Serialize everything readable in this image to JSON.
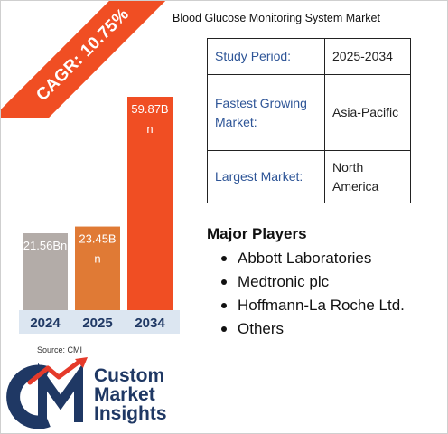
{
  "title": "Blood Glucose Monitoring System Market",
  "cagr_label": "CAGR: 10.75%",
  "source": "Source: CMI",
  "chart_data": {
    "type": "bar",
    "categories": [
      "2024",
      "2025",
      "2034"
    ],
    "values": [
      21.56,
      23.45,
      59.87
    ],
    "data_labels": [
      "21.56Bn",
      "23.45Bn",
      "59.87Bn"
    ],
    "colors": [
      "#b3aca8",
      "#e07a35",
      "#f04e23"
    ],
    "year_band_color": "#dce6f1"
  },
  "info_table": [
    {
      "key": "Study Period:",
      "value": "2025-2034"
    },
    {
      "key": "Fastest Growing Market:",
      "value": "Asia-Pacific"
    },
    {
      "key": "Largest Market:",
      "value": "North America"
    }
  ],
  "players": {
    "heading": "Major Players",
    "items": [
      "Abbott Laboratories",
      "Medtronic plc",
      "Hoffmann-La Roche Ltd.",
      "Others"
    ]
  },
  "logo": {
    "line1": "Custom",
    "line2": "Market",
    "line3": "Insights",
    "brand_color": "#1f3864",
    "accent_color": "#e53a2a"
  }
}
